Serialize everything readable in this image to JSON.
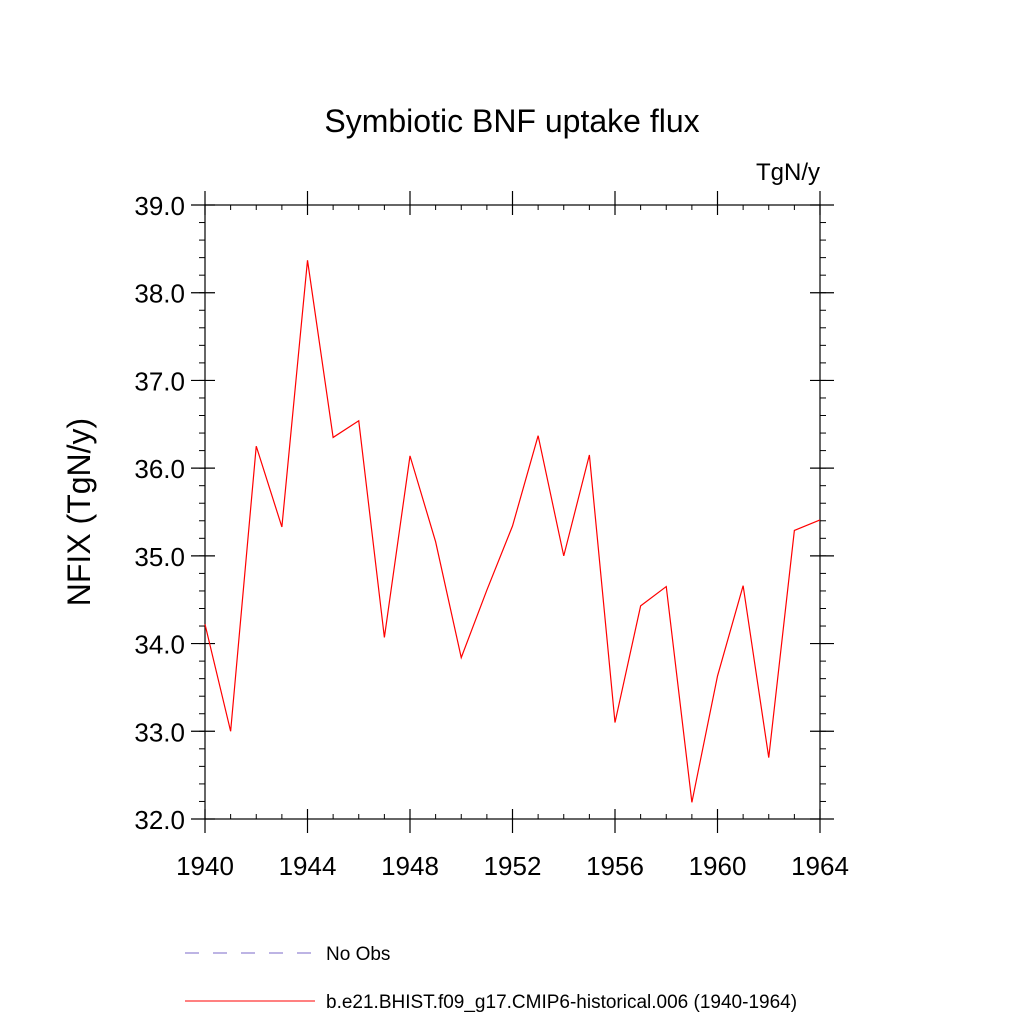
{
  "chart_data": {
    "type": "line",
    "title": "Symbiotic BNF uptake flux",
    "units_label": "TgN/y",
    "xlabel": "",
    "ylabel": "NFIX  (TgN/y)",
    "xlim": [
      1940,
      1964
    ],
    "ylim": [
      32.0,
      39.0
    ],
    "x_ticks": [
      1940,
      1944,
      1948,
      1952,
      1956,
      1960,
      1964
    ],
    "x_tick_labels": [
      "1940",
      "1944",
      "1948",
      "1952",
      "1956",
      "1960",
      "1964"
    ],
    "y_ticks": [
      32.0,
      33.0,
      34.0,
      35.0,
      36.0,
      37.0,
      38.0,
      39.0
    ],
    "y_tick_labels": [
      "32.0",
      "33.0",
      "34.0",
      "35.0",
      "36.0",
      "37.0",
      "38.0",
      "39.0"
    ],
    "grid": false,
    "legend_position": "bottom",
    "series": [
      {
        "name": "b.e21.BHIST.f09_g17.CMIP6-historical.006 (1940-1964)",
        "color": "#ff0000",
        "style": "solid",
        "x": [
          1940,
          1941,
          1942,
          1943,
          1944,
          1945,
          1946,
          1947,
          1948,
          1949,
          1950,
          1951,
          1952,
          1953,
          1954,
          1955,
          1956,
          1957,
          1958,
          1959,
          1960,
          1961,
          1962,
          1963,
          1964
        ],
        "y": [
          34.22,
          33.0,
          36.25,
          35.33,
          38.37,
          36.35,
          36.54,
          34.07,
          36.14,
          35.16,
          33.84,
          34.61,
          35.34,
          36.37,
          35.0,
          36.15,
          33.1,
          34.43,
          34.65,
          32.19,
          33.63,
          34.66,
          32.7,
          35.29,
          35.41
        ]
      }
    ],
    "legend": [
      {
        "label": "No Obs",
        "color": "#7b68c8",
        "style": "dashed"
      },
      {
        "label": "b.e21.BHIST.f09_g17.CMIP6-historical.006 (1940-1964)",
        "color": "#ff0000",
        "style": "solid"
      }
    ]
  }
}
